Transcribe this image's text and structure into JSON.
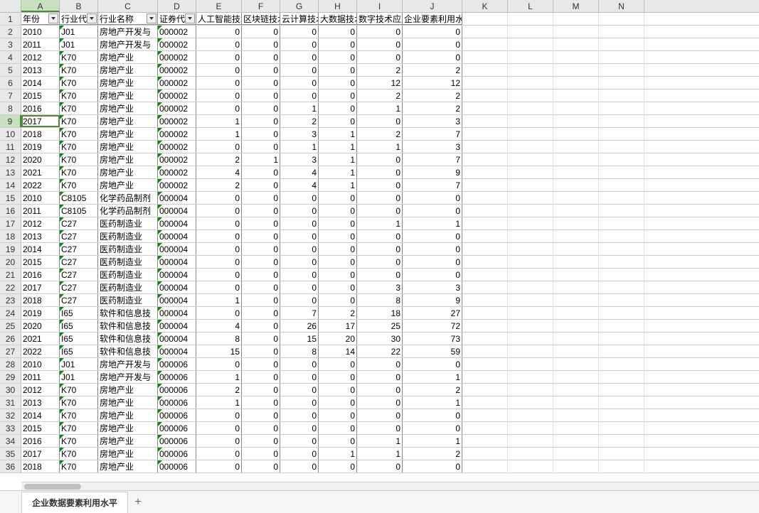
{
  "columns": {
    "widths": {
      "A": 54,
      "B": 54,
      "C": 84,
      "D": 54,
      "E": 64,
      "F": 54,
      "G": 54,
      "H": 54,
      "I": 64,
      "J": 84,
      "K": 64,
      "L": 64,
      "M": 64,
      "N": 64
    },
    "letters": [
      "A",
      "B",
      "C",
      "D",
      "E",
      "F",
      "G",
      "H",
      "I",
      "J",
      "K",
      "L",
      "M",
      "N"
    ]
  },
  "headers": [
    "年份",
    "行业代",
    "行业名称",
    "证券代码",
    "人工智能技术",
    "区块链技术",
    "云计算技术",
    "大数据技术",
    "数字技术应用",
    "企业要素利用水平"
  ],
  "filter_columns": [
    "A",
    "B",
    "C",
    "D"
  ],
  "active_cell": {
    "row": 9,
    "col": "A"
  },
  "rows": [
    [
      "2010",
      "J01",
      "房地产开发与",
      "000002",
      "0",
      "0",
      "0",
      "0",
      "0",
      "0"
    ],
    [
      "2011",
      "J01",
      "房地产开发与",
      "000002",
      "0",
      "0",
      "0",
      "0",
      "0",
      "0"
    ],
    [
      "2012",
      "K70",
      "房地产业",
      "000002",
      "0",
      "0",
      "0",
      "0",
      "0",
      "0"
    ],
    [
      "2013",
      "K70",
      "房地产业",
      "000002",
      "0",
      "0",
      "0",
      "0",
      "2",
      "2"
    ],
    [
      "2014",
      "K70",
      "房地产业",
      "000002",
      "0",
      "0",
      "0",
      "0",
      "12",
      "12"
    ],
    [
      "2015",
      "K70",
      "房地产业",
      "000002",
      "0",
      "0",
      "0",
      "0",
      "2",
      "2"
    ],
    [
      "2016",
      "K70",
      "房地产业",
      "000002",
      "0",
      "0",
      "1",
      "0",
      "1",
      "2"
    ],
    [
      "2017",
      "K70",
      "房地产业",
      "000002",
      "1",
      "0",
      "2",
      "0",
      "0",
      "3"
    ],
    [
      "2018",
      "K70",
      "房地产业",
      "000002",
      "1",
      "0",
      "3",
      "1",
      "2",
      "7"
    ],
    [
      "2019",
      "K70",
      "房地产业",
      "000002",
      "0",
      "0",
      "1",
      "1",
      "1",
      "3"
    ],
    [
      "2020",
      "K70",
      "房地产业",
      "000002",
      "2",
      "1",
      "3",
      "1",
      "0",
      "7"
    ],
    [
      "2021",
      "K70",
      "房地产业",
      "000002",
      "4",
      "0",
      "4",
      "1",
      "0",
      "9"
    ],
    [
      "2022",
      "K70",
      "房地产业",
      "000002",
      "2",
      "0",
      "4",
      "1",
      "0",
      "7"
    ],
    [
      "2010",
      "C8105",
      "化学药品制剂",
      "000004",
      "0",
      "0",
      "0",
      "0",
      "0",
      "0"
    ],
    [
      "2011",
      "C8105",
      "化学药品制剂",
      "000004",
      "0",
      "0",
      "0",
      "0",
      "0",
      "0"
    ],
    [
      "2012",
      "C27",
      "医药制造业",
      "000004",
      "0",
      "0",
      "0",
      "0",
      "1",
      "1"
    ],
    [
      "2013",
      "C27",
      "医药制造业",
      "000004",
      "0",
      "0",
      "0",
      "0",
      "0",
      "0"
    ],
    [
      "2014",
      "C27",
      "医药制造业",
      "000004",
      "0",
      "0",
      "0",
      "0",
      "0",
      "0"
    ],
    [
      "2015",
      "C27",
      "医药制造业",
      "000004",
      "0",
      "0",
      "0",
      "0",
      "0",
      "0"
    ],
    [
      "2016",
      "C27",
      "医药制造业",
      "000004",
      "0",
      "0",
      "0",
      "0",
      "0",
      "0"
    ],
    [
      "2017",
      "C27",
      "医药制造业",
      "000004",
      "0",
      "0",
      "0",
      "0",
      "3",
      "3"
    ],
    [
      "2018",
      "C27",
      "医药制造业",
      "000004",
      "1",
      "0",
      "0",
      "0",
      "8",
      "9"
    ],
    [
      "2019",
      "I65",
      "软件和信息技",
      "000004",
      "0",
      "0",
      "7",
      "2",
      "18",
      "27"
    ],
    [
      "2020",
      "I65",
      "软件和信息技",
      "000004",
      "4",
      "0",
      "26",
      "17",
      "25",
      "72"
    ],
    [
      "2021",
      "I65",
      "软件和信息技",
      "000004",
      "8",
      "0",
      "15",
      "20",
      "30",
      "73"
    ],
    [
      "2022",
      "I65",
      "软件和信息技",
      "000004",
      "15",
      "0",
      "8",
      "14",
      "22",
      "59"
    ],
    [
      "2010",
      "J01",
      "房地产开发与",
      "000006",
      "0",
      "0",
      "0",
      "0",
      "0",
      "0"
    ],
    [
      "2011",
      "J01",
      "房地产开发与",
      "000006",
      "1",
      "0",
      "0",
      "0",
      "0",
      "1"
    ],
    [
      "2012",
      "K70",
      "房地产业",
      "000006",
      "2",
      "0",
      "0",
      "0",
      "0",
      "2"
    ],
    [
      "2013",
      "K70",
      "房地产业",
      "000006",
      "1",
      "0",
      "0",
      "0",
      "0",
      "1"
    ],
    [
      "2014",
      "K70",
      "房地产业",
      "000006",
      "0",
      "0",
      "0",
      "0",
      "0",
      "0"
    ],
    [
      "2015",
      "K70",
      "房地产业",
      "000006",
      "0",
      "0",
      "0",
      "0",
      "0",
      "0"
    ],
    [
      "2016",
      "K70",
      "房地产业",
      "000006",
      "0",
      "0",
      "0",
      "0",
      "1",
      "1"
    ],
    [
      "2017",
      "K70",
      "房地产业",
      "000006",
      "0",
      "0",
      "0",
      "1",
      "1",
      "2"
    ],
    [
      "2018",
      "K70",
      "房地产业",
      "000006",
      "0",
      "0",
      "0",
      "0",
      "0",
      "0"
    ]
  ],
  "sheet_tab": "企业数据要素利用水平",
  "colors": {
    "grid_border": "#888",
    "header_bg": "#e8e8e8",
    "selected_header_bg": "#c8e0c0",
    "selected_border": "#4a8a3a",
    "green_triangle": "#0a8a0a"
  }
}
